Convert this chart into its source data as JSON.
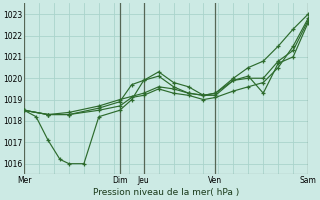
{
  "xlabel": "Pression niveau de la mer( hPa )",
  "bg_color": "#cceae4",
  "grid_color_minor": "#aad4cc",
  "grid_color_major": "#88bbb2",
  "line_color": "#2d6b2d",
  "ylim": [
    1015.5,
    1023.5
  ],
  "yticks": [
    1016,
    1017,
    1018,
    1019,
    1020,
    1021,
    1022,
    1023
  ],
  "xlim": [
    0,
    9.5
  ],
  "x_tick_positions": [
    0,
    3.2,
    4.0,
    6.4,
    9.5
  ],
  "x_tick_labels": [
    "Mer",
    "Dim",
    "Jeu",
    "Ven",
    "Sam"
  ],
  "x_vlines_dark": [
    0,
    3.2,
    4.0,
    6.4,
    9.5
  ],
  "series": [
    {
      "x": [
        0,
        0.8,
        1.5,
        2.5,
        3.2,
        3.6,
        4.0,
        4.5,
        5.0,
        5.5,
        6.0,
        6.4,
        7.0,
        7.5,
        8.0,
        8.5,
        9.0,
        9.5
      ],
      "y": [
        1018.5,
        1018.3,
        1018.3,
        1018.6,
        1018.9,
        1019.7,
        1019.9,
        1020.3,
        1019.8,
        1019.6,
        1019.2,
        1019.3,
        1019.9,
        1020.1,
        1019.3,
        1020.7,
        1021.0,
        1022.6
      ]
    },
    {
      "x": [
        0,
        0.8,
        1.5,
        2.5,
        3.2,
        3.6,
        4.0,
        4.5,
        5.0,
        5.5,
        6.0,
        6.4,
        7.0,
        7.5,
        8.0,
        8.5,
        9.0,
        9.5
      ],
      "y": [
        1018.5,
        1018.3,
        1018.3,
        1018.5,
        1018.7,
        1019.1,
        1019.2,
        1019.5,
        1019.3,
        1019.2,
        1019.0,
        1019.1,
        1019.4,
        1019.6,
        1019.8,
        1020.5,
        1021.5,
        1022.8
      ]
    },
    {
      "x": [
        0,
        0.4,
        0.8,
        1.2,
        1.5,
        2.0,
        2.5,
        3.2,
        3.6,
        4.0,
        4.5,
        5.0,
        5.5,
        6.0,
        6.4,
        7.0,
        7.5,
        8.0,
        8.5,
        9.0,
        9.5
      ],
      "y": [
        1018.5,
        1018.2,
        1017.1,
        1016.2,
        1016.0,
        1016.0,
        1018.2,
        1018.5,
        1019.0,
        1019.9,
        1020.1,
        1019.6,
        1019.3,
        1019.2,
        1019.2,
        1019.9,
        1020.0,
        1020.0,
        1020.8,
        1021.3,
        1022.7
      ]
    },
    {
      "x": [
        0,
        0.8,
        1.5,
        2.5,
        3.2,
        4.0,
        4.5,
        5.0,
        5.5,
        6.0,
        6.4,
        7.0,
        7.5,
        8.0,
        8.5,
        9.0,
        9.5
      ],
      "y": [
        1018.5,
        1018.3,
        1018.4,
        1018.7,
        1019.0,
        1019.3,
        1019.6,
        1019.5,
        1019.3,
        1019.2,
        1019.3,
        1020.0,
        1020.5,
        1020.8,
        1021.5,
        1022.3,
        1023.0
      ]
    }
  ]
}
